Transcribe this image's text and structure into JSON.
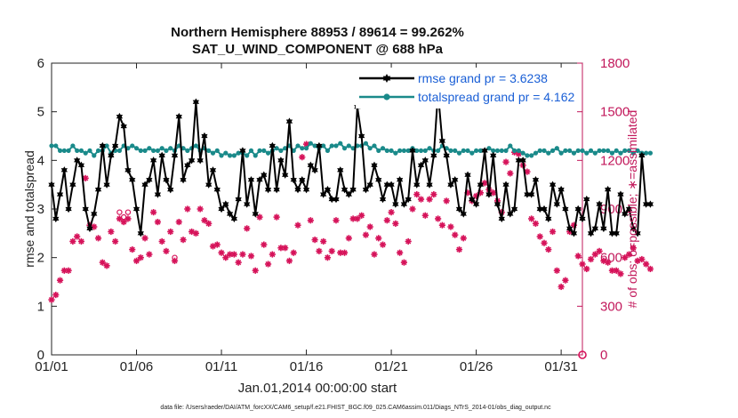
{
  "chart_data": {
    "type": "line",
    "title_line1": "Northern Hemisphere 88953 / 89614 = 99.262%",
    "title_line2": "SAT_U_WIND_COMPONENT @ 688 hPa",
    "ylabel_left": "rmse and totalspread",
    "ylabel_right": "# of obs: o=possible; ∗=assimilated",
    "xlabel": "Jan.01,2014 00:00:00 start",
    "footer": "data file: /Users/raeder/DAI/ATM_forcXX/CAM6_setup/f.e21.FHIST_BGC.f09_025.CAM6assim.011/Diags_NTrS_2014-01/obs_diag_output.nc",
    "x_ticks": [
      "01/01",
      "01/06",
      "01/11",
      "01/16",
      "01/21",
      "01/26",
      "01/31"
    ],
    "x_tick_days": [
      0,
      5,
      10,
      15,
      20,
      25,
      30
    ],
    "xlim_days": [
      0,
      31.25
    ],
    "y_left_ticks": [
      "0",
      "1",
      "2",
      "3",
      "4",
      "5",
      "6"
    ],
    "ylim_left": [
      0,
      6
    ],
    "y_right_ticks": [
      "0",
      "300",
      "600",
      "900",
      "1200",
      "1500",
      "1800"
    ],
    "ylim_right": [
      0,
      1800
    ],
    "legend": [
      {
        "label": "rmse grand pr = 3.6238",
        "color": "#000000",
        "marker": "hexagram"
      },
      {
        "label": "totalspread grand pr = 4.162",
        "color": "#1a8a8a",
        "marker": "circle"
      }
    ],
    "colors": {
      "rmse": "#000000",
      "spread": "#1a8a8a",
      "obs": "#d6135a"
    },
    "series": [
      {
        "name": "rmse",
        "values": [
          3.5,
          2.8,
          3.3,
          3.8,
          3.0,
          3.5,
          4.0,
          3.9,
          3.0,
          2.6,
          2.9,
          3.4,
          4.3,
          3.5,
          4.1,
          4.3,
          4.9,
          4.7,
          3.8,
          3.6,
          3.0,
          2.5,
          3.5,
          3.6,
          4.0,
          3.3,
          4.1,
          3.6,
          3.4,
          4.1,
          4.9,
          3.6,
          3.9,
          4.0,
          5.2,
          4.0,
          4.5,
          3.5,
          3.8,
          3.4,
          3.0,
          3.1,
          2.9,
          2.8,
          3.2,
          4.2,
          3.1,
          3.6,
          2.9,
          3.6,
          3.7,
          3.4,
          4.3,
          3.4,
          4.0,
          3.7,
          4.8,
          3.6,
          3.4,
          3.6,
          3.4,
          3.9,
          3.8,
          4.3,
          3.3,
          3.4,
          3.2,
          3.2,
          3.8,
          3.4,
          3.3,
          3.4,
          5.1,
          4.5,
          3.4,
          3.5,
          3.9,
          3.6,
          3.2,
          3.5,
          3.5,
          3.1,
          3.6,
          3.1,
          3.2,
          4.2,
          3.5,
          3.9,
          4.0,
          3.5,
          4.1,
          5.4,
          4.4,
          4.1,
          3.5,
          3.6,
          3.0,
          2.9,
          3.7,
          3.2,
          3.1,
          3.5,
          4.2,
          3.3,
          4.1,
          3.1,
          2.8,
          3.5,
          2.9,
          3.0,
          4.0,
          4.0,
          3.3,
          3.3,
          3.6,
          3.0,
          3.0,
          2.8,
          3.5,
          3.1,
          3.4,
          3.0,
          2.6,
          2.5,
          3.0,
          2.8,
          3.2,
          2.5,
          2.6,
          3.1,
          2.6,
          3.4,
          2.5,
          2.5,
          3.3,
          2.9,
          3.0,
          2.6,
          2.5,
          4.1,
          3.1,
          3.1
        ],
        "x_start_day": 0,
        "x_step_day": 0.25
      },
      {
        "name": "totalspread",
        "values": [
          4.3,
          4.3,
          4.2,
          4.2,
          4.2,
          4.3,
          4.2,
          4.2,
          4.15,
          4.2,
          4.1,
          4.2,
          4.2,
          4.3,
          4.15,
          4.2,
          4.2,
          4.3,
          4.25,
          4.3,
          4.25,
          4.2,
          4.2,
          4.25,
          4.2,
          4.2,
          4.25,
          4.2,
          4.25,
          4.2,
          4.3,
          4.25,
          4.2,
          4.25,
          4.3,
          4.2,
          4.25,
          4.2,
          4.15,
          4.2,
          4.1,
          4.15,
          4.1,
          4.1,
          4.15,
          4.15,
          4.1,
          4.2,
          4.1,
          4.2,
          4.2,
          4.15,
          4.2,
          4.25,
          4.2,
          4.25,
          4.3,
          4.2,
          4.3,
          4.25,
          4.25,
          4.35,
          4.3,
          4.25,
          4.3,
          4.2,
          4.3,
          4.3,
          4.35,
          4.25,
          4.3,
          4.25,
          4.3,
          4.3,
          4.35,
          4.25,
          4.3,
          4.2,
          4.25,
          4.2,
          4.2,
          4.15,
          4.2,
          4.2,
          4.2,
          4.25,
          4.2,
          4.2,
          4.2,
          4.25,
          4.2,
          4.2,
          4.3,
          4.25,
          4.2,
          4.2,
          4.15,
          4.2,
          4.2,
          4.15,
          4.2,
          4.2,
          4.2,
          4.25,
          4.2,
          4.2,
          4.2,
          4.2,
          4.3,
          4.2,
          4.2,
          4.15,
          4.1,
          4.1,
          4.15,
          4.2,
          4.2,
          4.15,
          4.2,
          4.25,
          4.15,
          4.2,
          4.2,
          4.15,
          4.2,
          4.2,
          4.15,
          4.2,
          4.15,
          4.2,
          4.2,
          4.2,
          4.15,
          4.2,
          4.15,
          4.2,
          4.2,
          4.15,
          4.2,
          4.15,
          4.15,
          4.15
        ],
        "x_start_day": 0,
        "x_step_day": 0.25
      },
      {
        "name": "obs_assimilated",
        "axis": "right",
        "values": [
          340,
          370,
          460,
          520,
          520,
          700,
          730,
          700,
          1090,
          800,
          790,
          720,
          570,
          550,
          760,
          700,
          840,
          820,
          840,
          650,
          580,
          600,
          720,
          620,
          880,
          820,
          700,
          640,
          760,
          580,
          820,
          710,
          900,
          760,
          750,
          900,
          830,
          810,
          670,
          680,
          630,
          600,
          620,
          620,
          570,
          620,
          780,
          610,
          520,
          850,
          680,
          560,
          620,
          850,
          660,
          660,
          580,
          630,
          800,
          1220,
          1300,
          830,
          710,
          640,
          700,
          600,
          640,
          830,
          630,
          630,
          720,
          840,
          840,
          860,
          740,
          790,
          620,
          720,
          680,
          830,
          880,
          810,
          630,
          570,
          700,
          900,
          990,
          960,
          860,
          960,
          990,
          840,
          800,
          950,
          790,
          740,
          650,
          720,
          1000,
          950,
          980,
          1000,
          1060,
          1020,
          1000,
          950,
          880,
          1190,
          1120,
          1250,
          1240,
          1170,
          1130,
          840,
          810,
          730,
          690,
          650,
          760,
          520,
          420,
          460,
          760,
          800,
          610,
          560,
          530,
          590,
          620,
          640,
          580,
          570,
          520,
          520,
          500,
          600,
          620,
          660,
          580,
          590,
          560,
          530
        ],
        "x_start_day": 0,
        "x_step_day": 0.25
      },
      {
        "name": "obs_possible",
        "axis": "right",
        "values": [
          340,
          370,
          460,
          520,
          520,
          700,
          730,
          700,
          1090,
          800,
          790,
          720,
          570,
          550,
          760,
          700,
          880,
          850,
          880,
          650,
          580,
          600,
          720,
          620,
          880,
          820,
          700,
          640,
          760,
          600,
          820,
          710,
          900,
          760,
          750,
          900,
          830,
          810,
          670,
          680,
          630,
          600,
          620,
          620,
          570,
          620,
          780,
          610,
          520,
          850,
          680,
          560,
          620,
          850,
          660,
          660,
          580,
          630,
          800,
          1220,
          1300,
          830,
          710,
          640,
          700,
          600,
          640,
          830,
          630,
          630,
          720,
          840,
          840,
          860,
          740,
          790,
          620,
          720,
          680,
          830,
          880,
          810,
          630,
          570,
          700,
          900,
          990,
          960,
          860,
          960,
          990,
          840,
          800,
          950,
          790,
          740,
          650,
          720,
          1000,
          950,
          980,
          1000,
          1060,
          1020,
          1000,
          950,
          880,
          1190,
          1120,
          1250,
          1240,
          1170,
          1130,
          840,
          810,
          730,
          690,
          650,
          760,
          520,
          420,
          460,
          760,
          800,
          610,
          560,
          530,
          590,
          620,
          640,
          580,
          570,
          520,
          520,
          500,
          600,
          620,
          660,
          580,
          590,
          560,
          530
        ],
        "x_start_day": 0,
        "x_step_day": 0.25
      }
    ]
  }
}
